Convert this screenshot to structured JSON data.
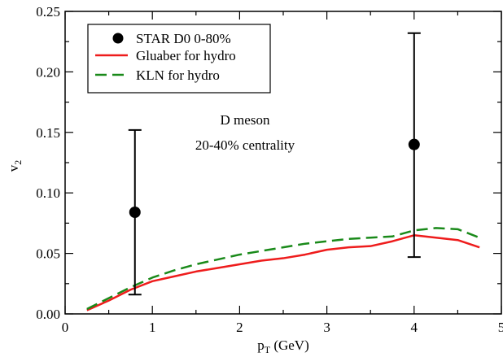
{
  "chart_data": {
    "type": "line",
    "title": "",
    "xlabel": {
      "main": "p",
      "sub": "T",
      "rest": " (GeV)"
    },
    "ylabel": {
      "main": "v",
      "sub": "2"
    },
    "xlim": [
      0,
      5
    ],
    "ylim": [
      0,
      0.25
    ],
    "xticks": [
      0,
      1,
      2,
      3,
      4,
      5
    ],
    "xtick_labels": [
      "0",
      "1",
      "2",
      "3",
      "4",
      "5"
    ],
    "yticks": [
      0,
      0.05,
      0.1,
      0.15,
      0.2,
      0.25
    ],
    "ytick_labels": [
      "0.00",
      "0.05",
      "0.10",
      "0.15",
      "0.20",
      "0.25"
    ],
    "grid": false,
    "legend_position": "top-left",
    "annotation": [
      "D meson",
      "20-40% centrality"
    ],
    "points": {
      "name": "STAR D0 0-80%",
      "color": "#000000",
      "data": [
        {
          "x": 0.8,
          "y": 0.084,
          "ylow": 0.016,
          "yhigh": 0.152
        },
        {
          "x": 4.0,
          "y": 0.14,
          "ylow": 0.047,
          "yhigh": 0.232
        }
      ]
    },
    "series": [
      {
        "name": "Gluaber for hydro",
        "color": "#ee1c1c",
        "dash": "solid",
        "x": [
          0.25,
          0.5,
          0.75,
          1.0,
          1.25,
          1.5,
          1.75,
          2.0,
          2.25,
          2.5,
          2.75,
          3.0,
          3.25,
          3.5,
          3.75,
          4.0,
          4.25,
          4.5,
          4.75
        ],
        "y": [
          0.003,
          0.011,
          0.02,
          0.027,
          0.031,
          0.035,
          0.038,
          0.041,
          0.044,
          0.046,
          0.049,
          0.053,
          0.055,
          0.056,
          0.06,
          0.065,
          0.063,
          0.061,
          0.055
        ]
      },
      {
        "name": "KLN for hydro",
        "color": "#1a8a1a",
        "dash": "dashed",
        "x": [
          0.25,
          0.5,
          0.75,
          1.0,
          1.25,
          1.5,
          1.75,
          2.0,
          2.25,
          2.5,
          2.75,
          3.0,
          3.25,
          3.5,
          3.75,
          4.0,
          4.25,
          4.5,
          4.75
        ],
        "y": [
          0.004,
          0.013,
          0.022,
          0.03,
          0.036,
          0.041,
          0.045,
          0.049,
          0.052,
          0.055,
          0.058,
          0.06,
          0.062,
          0.063,
          0.064,
          0.069,
          0.071,
          0.07,
          0.063
        ]
      }
    ]
  }
}
